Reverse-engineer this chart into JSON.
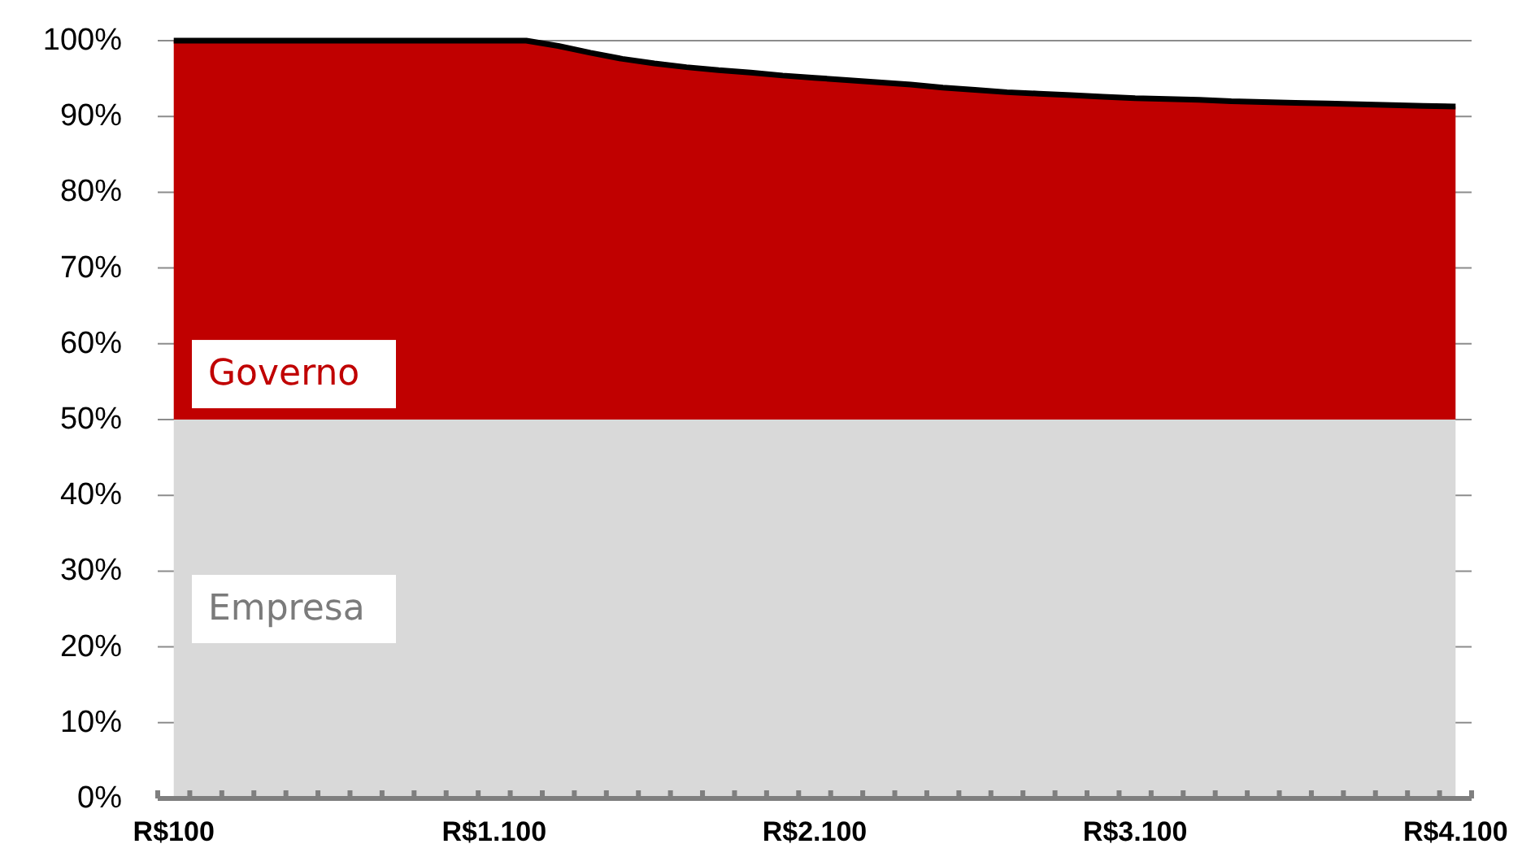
{
  "chart_data": {
    "type": "area",
    "stacked": true,
    "categories": [
      "R$100",
      null,
      null,
      null,
      null,
      null,
      null,
      null,
      null,
      null,
      "R$1.100",
      null,
      null,
      null,
      null,
      null,
      null,
      null,
      null,
      null,
      "R$2.100",
      null,
      null,
      null,
      null,
      null,
      null,
      null,
      null,
      null,
      "R$3.100",
      null,
      null,
      null,
      null,
      null,
      null,
      null,
      null,
      null,
      "R$4.100"
    ],
    "series": [
      {
        "name": "Empresa",
        "color": "#d9d9d9",
        "values": [
          50,
          50,
          50,
          50,
          50,
          50,
          50,
          50,
          50,
          50,
          50,
          50,
          50,
          50,
          50,
          50,
          50,
          50,
          50,
          50,
          50,
          50,
          50,
          50,
          50,
          50,
          50,
          50,
          50,
          50,
          50,
          50,
          50,
          50,
          50,
          50,
          50,
          50,
          50,
          50,
          50
        ]
      },
      {
        "name": "Governo",
        "color": "#c00000",
        "values": [
          50,
          50,
          50,
          50,
          50,
          50,
          50,
          50,
          50,
          50,
          50,
          50,
          49.3,
          48.4,
          47.6,
          47.0,
          46.5,
          46.1,
          45.8,
          45.4,
          45.1,
          44.8,
          44.5,
          44.2,
          43.8,
          43.5,
          43.2,
          43.0,
          42.8,
          42.6,
          42.4,
          42.3,
          42.2,
          42.0,
          41.9,
          41.8,
          41.7,
          41.6,
          41.5,
          41.4,
          41.3
        ]
      }
    ],
    "ylim": [
      0,
      100
    ],
    "yticks": [
      {
        "value": 0,
        "label": "0%"
      },
      {
        "value": 10,
        "label": "10%"
      },
      {
        "value": 20,
        "label": "20%"
      },
      {
        "value": 30,
        "label": "30%"
      },
      {
        "value": 40,
        "label": "40%"
      },
      {
        "value": 50,
        "label": "50%"
      },
      {
        "value": 60,
        "label": "60%"
      },
      {
        "value": 70,
        "label": "70%"
      },
      {
        "value": 80,
        "label": "80%"
      },
      {
        "value": 90,
        "label": "90%"
      },
      {
        "value": 100,
        "label": "100%"
      }
    ],
    "grid": "y",
    "legend": false
  }
}
